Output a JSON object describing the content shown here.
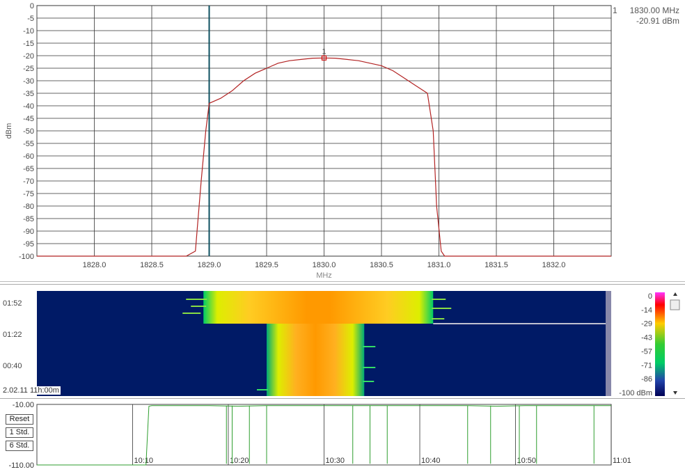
{
  "chart_data": [
    {
      "type": "line",
      "xlabel": "MHz",
      "ylabel": "dBm",
      "xlim": [
        1827.5,
        1832.5
      ],
      "ylim": [
        -100,
        0
      ],
      "x_ticks": [
        "1828.0",
        "1828.5",
        "1829.0",
        "1829.5",
        "1830.0",
        "1830.5",
        "1831.0",
        "1831.5",
        "1832.0"
      ],
      "y_ticks": [
        "0",
        "-5",
        "-10",
        "-15",
        "-20",
        "-25",
        "-30",
        "-35",
        "-40",
        "-45",
        "-50",
        "-55",
        "-60",
        "-65",
        "-70",
        "-75",
        "-80",
        "-85",
        "-90",
        "-95",
        "-100"
      ],
      "grid": true,
      "series": [
        {
          "color": "#b22222",
          "x": [
            1827.5,
            1828.0,
            1828.5,
            1828.8,
            1828.88,
            1828.93,
            1828.97,
            1829.0,
            1829.1,
            1829.2,
            1829.3,
            1829.4,
            1829.5,
            1829.6,
            1829.7,
            1829.8,
            1829.9,
            1830.0,
            1830.1,
            1830.2,
            1830.3,
            1830.4,
            1830.5,
            1830.6,
            1830.7,
            1830.8,
            1830.9,
            1830.95,
            1830.98,
            1831.02,
            1831.05,
            1831.5,
            1832.0,
            1832.5
          ],
          "y": [
            -100,
            -100,
            -100,
            -100,
            -98,
            -70,
            -50,
            -39,
            -37,
            -34,
            -30,
            -27,
            -25,
            -23,
            -22,
            -21.5,
            -21,
            -20.91,
            -21,
            -21.5,
            -22,
            -23,
            -24,
            -26,
            -29,
            -32,
            -35,
            -50,
            -80,
            -98,
            -100,
            -100,
            -100,
            -100
          ]
        }
      ],
      "vertical_line_x": 1829.0,
      "marker": {
        "label": "1",
        "x": 1830.0,
        "y": -20.91,
        "freq_text": "1830.00 MHz",
        "amp_text": "-20.91 dBm"
      }
    },
    {
      "type": "heatmap",
      "y_ticks": [
        "01:52",
        "01:22",
        "00:40"
      ],
      "color_scale": {
        "ticks": [
          "0",
          "-14",
          "-29",
          "-43",
          "-57",
          "-71",
          "-86",
          "-100 dBm"
        ]
      },
      "timestamp": "2.02.11 11h:00m",
      "description_free": true,
      "wide_band_x": [
        1828.95,
        1830.95
      ],
      "narrow_band_x": [
        1829.5,
        1830.35
      ],
      "background_color": "#001a66"
    },
    {
      "type": "line",
      "ylim": [
        -110,
        -10
      ],
      "y_ticks": [
        "-10.00",
        "-110.00"
      ],
      "x_ticks": [
        "10:10",
        "10:20",
        "10:30",
        "10:40",
        "10:50",
        "11:01"
      ],
      "buttons": [
        "Reset",
        "1 Std.",
        "6 Std."
      ],
      "series": [
        {
          "color": "#2e9e2e",
          "x": [
            10.0,
            10.19,
            10.195,
            10.2,
            10.25,
            10.3,
            10.35,
            10.4,
            10.45,
            10.5,
            10.55,
            10.6,
            10.65,
            10.7,
            10.75,
            10.8,
            10.85,
            10.9,
            10.95,
            11.0
          ],
          "y": [
            -110,
            -110,
            -13,
            -12,
            -12,
            -12,
            -13,
            -12,
            -12,
            -12,
            -12,
            -12,
            -12,
            -12,
            -12,
            -13,
            -12,
            -12,
            -12,
            -12
          ]
        }
      ],
      "dropouts_x": [
        10.33,
        10.34,
        10.37,
        10.4,
        10.55,
        10.58,
        10.61,
        10.75,
        10.79,
        10.84,
        10.87,
        10.97
      ]
    }
  ]
}
